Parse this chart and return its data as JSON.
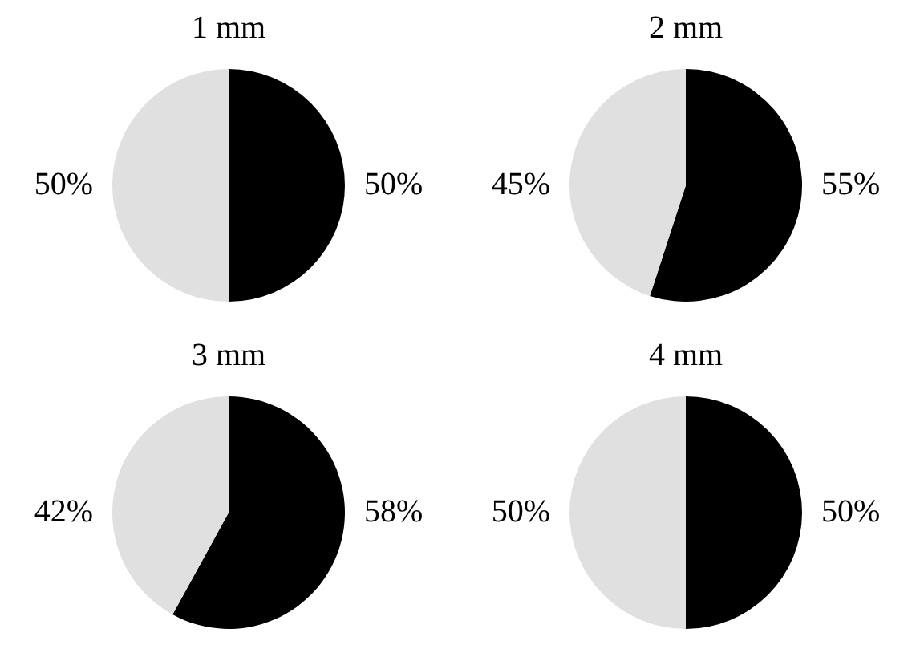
{
  "chart_data": [
    {
      "type": "pie",
      "title": "1 mm",
      "categories": [
        null,
        null
      ],
      "values": [
        50,
        50
      ],
      "colors": [
        "#000000",
        "#e0e0e0"
      ],
      "value_labels": [
        "50%",
        "50%"
      ]
    },
    {
      "type": "pie",
      "title": "2 mm",
      "categories": [
        null,
        null
      ],
      "values": [
        55,
        45
      ],
      "colors": [
        "#000000",
        "#e0e0e0"
      ],
      "value_labels": [
        "55%",
        "45%"
      ]
    },
    {
      "type": "pie",
      "title": "3 mm",
      "categories": [
        null,
        null
      ],
      "values": [
        58,
        42
      ],
      "colors": [
        "#000000",
        "#e0e0e0"
      ],
      "value_labels": [
        "58%",
        "42%"
      ]
    },
    {
      "type": "pie",
      "title": "4 mm",
      "categories": [
        null,
        null
      ],
      "values": [
        50,
        50
      ],
      "colors": [
        "#000000",
        "#e0e0e0"
      ],
      "value_labels": [
        "50%",
        "50%"
      ]
    }
  ]
}
